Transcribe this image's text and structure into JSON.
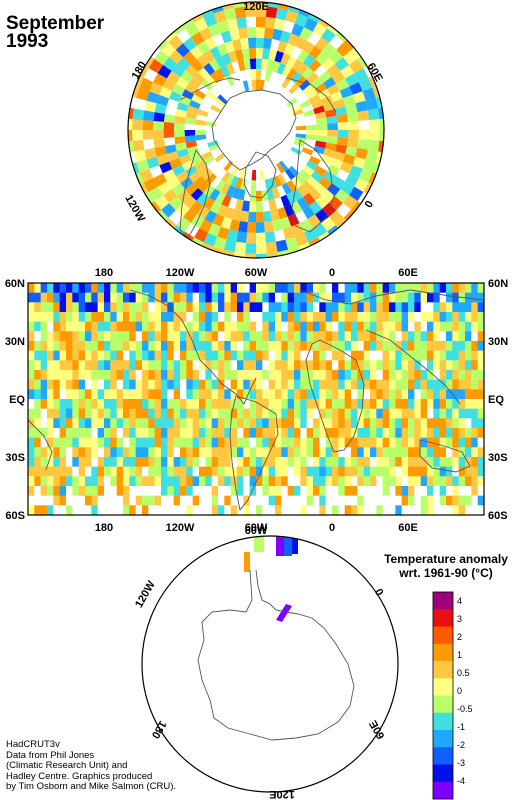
{
  "title": {
    "month": "September",
    "year": "1993"
  },
  "north_polar": {
    "lon_labels": [
      "120E",
      "60E",
      "0",
      "120W",
      "180"
    ]
  },
  "equirect": {
    "lon_labels": [
      "180",
      "120W",
      "60W",
      "0",
      "60E"
    ],
    "lat_labels": [
      "60N",
      "30N",
      "EQ",
      "30S",
      "60S"
    ]
  },
  "south_polar": {
    "lon_labels": [
      "60W",
      "0",
      "60E",
      "120E",
      "180",
      "120W"
    ]
  },
  "legend": {
    "title_line1": "Temperature anomaly",
    "title_line2": "wrt. 1961-90  (°C)",
    "ticks": [
      "4",
      "3",
      "2",
      "1",
      "0.5",
      "0",
      "-0.5",
      "-1",
      "-2",
      "-3",
      "-4"
    ],
    "colors": [
      "#a0007a",
      "#e81010",
      "#ff5a00",
      "#ff9a00",
      "#ffc840",
      "#ffff80",
      "#b8ff6a",
      "#40e0e0",
      "#20a8ff",
      "#1060ff",
      "#0010e8",
      "#8000ff"
    ]
  },
  "credits": {
    "line1": "HadCRUT3v",
    "line2": "Data from Phil Jones",
    "line3": "(Climatic Research Unit) and",
    "line4": "Hadley Centre.  Graphics produced",
    "line5": "by Tim Osborn and Mike Salmon (CRU)."
  }
}
